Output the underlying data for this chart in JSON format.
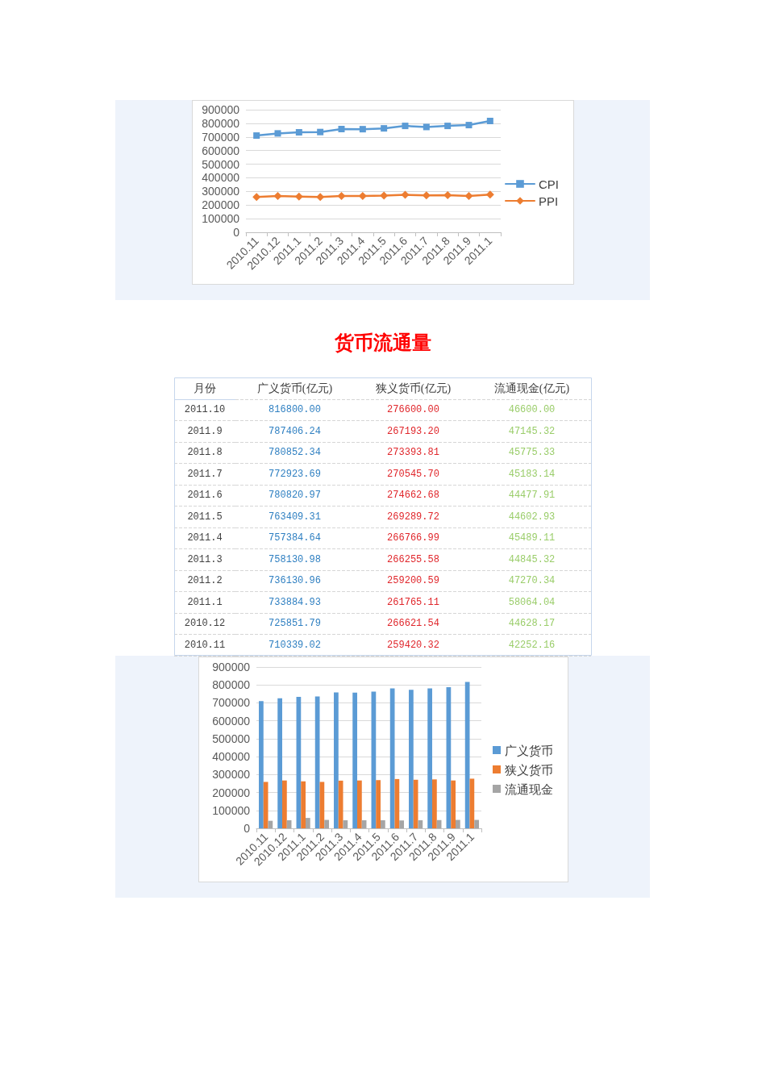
{
  "chart_data": [
    {
      "type": "line",
      "categories": [
        "2010.11",
        "2010.12",
        "2011.1",
        "2011.2",
        "2011.3",
        "2011.4",
        "2011.5",
        "2011.6",
        "2011.7",
        "2011.8",
        "2011.9",
        "2011.1"
      ],
      "series": [
        {
          "name": "CPI",
          "color": "#5b9bd5",
          "marker": "square",
          "values": [
            710000,
            726000,
            734000,
            736000,
            758000,
            757000,
            763000,
            781000,
            773000,
            781000,
            787000,
            817000
          ]
        },
        {
          "name": "PPI",
          "color": "#ed7d31",
          "marker": "diamond",
          "values": [
            259000,
            267000,
            262000,
            259000,
            266000,
            267000,
            269000,
            275000,
            271000,
            273000,
            267000,
            277000
          ]
        }
      ],
      "ylim": [
        0,
        900000
      ],
      "yticks": [
        0,
        100000,
        200000,
        300000,
        400000,
        500000,
        600000,
        700000,
        800000,
        900000
      ],
      "grid": true,
      "legend": "right",
      "line_style": "solid"
    },
    {
      "type": "heatmap",
      "title": "货币流通量",
      "ylabel": "月份",
      "categories": [
        "广义货币(亿元)",
        "狭义货币(亿元)",
        "流通现金(亿元)"
      ],
      "y_categories": [
        "2011.10",
        "2011.9",
        "2011.8",
        "2011.7",
        "2011.6",
        "2011.5",
        "2011.4",
        "2011.3",
        "2011.2",
        "2011.1",
        "2010.12",
        "2010.11"
      ],
      "colors": [
        "#2e7fc1",
        "#e0262b",
        "#9acd6a"
      ],
      "cells": [
        [
          816800.0,
          276600.0,
          46600.0
        ],
        [
          787406.24,
          267193.2,
          47145.32
        ],
        [
          780852.34,
          273393.81,
          45775.33
        ],
        [
          772923.69,
          270545.7,
          45183.14
        ],
        [
          780820.97,
          274662.68,
          44477.91
        ],
        [
          763409.31,
          269289.72,
          44602.93
        ],
        [
          757384.64,
          266766.99,
          45489.11
        ],
        [
          758130.98,
          266255.58,
          44845.32
        ],
        [
          736130.96,
          259200.59,
          47270.34
        ],
        [
          733884.93,
          261765.11,
          58064.04
        ],
        [
          725851.79,
          266621.54,
          44628.17
        ],
        [
          710339.02,
          259420.32,
          42252.16
        ]
      ],
      "cell_labels": [
        [
          "816800.00",
          "276600.00",
          "46600.00"
        ],
        [
          "787406.24",
          "267193.20",
          "47145.32"
        ],
        [
          "780852.34",
          "273393.81",
          "45775.33"
        ],
        [
          "772923.69",
          "270545.70",
          "45183.14"
        ],
        [
          "780820.97",
          "274662.68",
          "44477.91"
        ],
        [
          "763409.31",
          "269289.72",
          "44602.93"
        ],
        [
          "757384.64",
          "266766.99",
          "45489.11"
        ],
        [
          "758130.98",
          "266255.58",
          "44845.32"
        ],
        [
          "736130.96",
          "259200.59",
          "47270.34"
        ],
        [
          "733884.93",
          "261765.11",
          "58064.04"
        ],
        [
          "725851.79",
          "266621.54",
          "44628.17"
        ],
        [
          "710339.02",
          "259420.32",
          "42252.16"
        ]
      ]
    },
    {
      "type": "bar",
      "categories": [
        "2010.11",
        "2010.12",
        "2011.1",
        "2011.2",
        "2011.3",
        "2011.4",
        "2011.5",
        "2011.6",
        "2011.7",
        "2011.8",
        "2011.9",
        "2011.1"
      ],
      "series": [
        {
          "name": "广义货币",
          "color": "#5b9bd5",
          "values": [
            710000,
            726000,
            734000,
            736000,
            758000,
            757000,
            763000,
            781000,
            773000,
            781000,
            787000,
            817000
          ]
        },
        {
          "name": "狭义货币",
          "color": "#ed7d31",
          "values": [
            259000,
            267000,
            262000,
            259000,
            266000,
            267000,
            269000,
            275000,
            271000,
            273000,
            267000,
            277000
          ]
        },
        {
          "name": "流通现金",
          "color": "#a5a5a5",
          "values": [
            42000,
            45000,
            58000,
            47000,
            45000,
            45000,
            45000,
            44000,
            45000,
            46000,
            47000,
            47000
          ]
        }
      ],
      "ylim": [
        0,
        900000
      ],
      "yticks": [
        0,
        100000,
        200000,
        300000,
        400000,
        500000,
        600000,
        700000,
        800000,
        900000
      ],
      "grid": true,
      "legend": "right"
    }
  ]
}
